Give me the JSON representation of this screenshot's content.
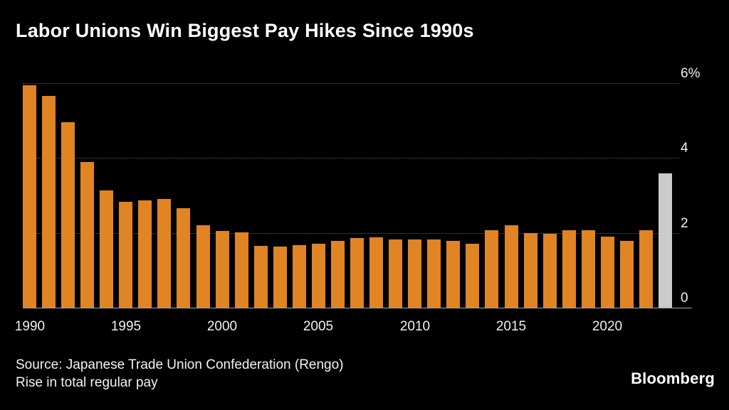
{
  "title": "Labor Unions Win Biggest Pay Hikes Since 1990s",
  "chart_data": {
    "type": "bar",
    "title": "Labor Unions Win Biggest Pay Hikes Since 1990s",
    "xlabel": "",
    "ylabel": "",
    "unit": "%",
    "ylim": [
      0,
      6
    ],
    "grid": "dotted-horizontal",
    "legend": "none",
    "categories": [
      1990,
      1991,
      1992,
      1993,
      1994,
      1995,
      1996,
      1997,
      1998,
      1999,
      2000,
      2001,
      2002,
      2003,
      2004,
      2005,
      2006,
      2007,
      2008,
      2009,
      2010,
      2011,
      2012,
      2013,
      2014,
      2015,
      2016,
      2017,
      2018,
      2019,
      2020,
      2021,
      2022,
      2023
    ],
    "values": [
      5.94,
      5.65,
      4.95,
      3.89,
      3.13,
      2.83,
      2.86,
      2.9,
      2.66,
      2.21,
      2.06,
      2.01,
      1.66,
      1.63,
      1.67,
      1.71,
      1.79,
      1.87,
      1.88,
      1.83,
      1.82,
      1.83,
      1.78,
      1.71,
      2.07,
      2.2,
      2.0,
      1.98,
      2.07,
      2.07,
      1.9,
      1.78,
      2.07,
      3.58
    ],
    "highlight_index": 33,
    "y_ticks": [
      {
        "value": 6,
        "label": "6%"
      },
      {
        "value": 4,
        "label": "4"
      },
      {
        "value": 2,
        "label": "2"
      },
      {
        "value": 0,
        "label": "0"
      }
    ],
    "x_ticks": [
      1990,
      1995,
      2000,
      2005,
      2010,
      2015,
      2020
    ],
    "colors": {
      "bar": "#E08424",
      "highlight_bar": "#CBCBCB",
      "gridline": "#5E5E5E",
      "baseline": "#A8A8A8",
      "axis_text": "#F2F1EC",
      "title_text": "#FFFFFF",
      "background": "#000000"
    }
  },
  "footer": {
    "source_line": "Source: Japanese Trade Union Confederation (Rengo)",
    "caption_line": "Rise in total regular pay",
    "brand": "Bloomberg"
  }
}
